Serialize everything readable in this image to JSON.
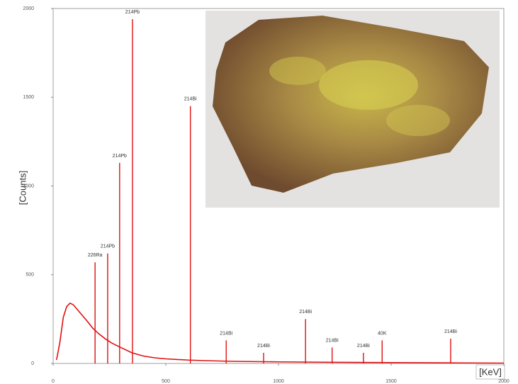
{
  "chart_data": {
    "type": "line",
    "color": "#e01010",
    "y_label": "[Counts]",
    "x_label": "[KeV]",
    "xlim": [
      0,
      2000
    ],
    "xticks": [
      0,
      500,
      1000,
      1500,
      2000
    ],
    "ylim": [
      0,
      2000
    ],
    "yticks": [
      0,
      500,
      1000,
      1500,
      2000
    ],
    "x": [
      15,
      30,
      45,
      60,
      75,
      90,
      110,
      130,
      150,
      175,
      200,
      230,
      260,
      300,
      350,
      400,
      450,
      500,
      600,
      700,
      800,
      1000,
      1200,
      1500,
      1800,
      2000
    ],
    "values": [
      20,
      120,
      260,
      320,
      340,
      330,
      300,
      270,
      240,
      200,
      170,
      140,
      115,
      90,
      60,
      42,
      32,
      26,
      19,
      15,
      12,
      9,
      7,
      5,
      3,
      2
    ],
    "peaks": [
      {
        "energy": 186,
        "counts": 570,
        "label": "226Ra"
      },
      {
        "energy": 242,
        "counts": 620,
        "label": "214Pb"
      },
      {
        "energy": 295,
        "counts": 1130,
        "label": "214Pb"
      },
      {
        "energy": 352,
        "counts": 1940,
        "label": "214Pb"
      },
      {
        "energy": 609,
        "counts": 1450,
        "label": "214Bi"
      },
      {
        "energy": 768,
        "counts": 130,
        "label": "214Bi"
      },
      {
        "energy": 934,
        "counts": 60,
        "label": "214Bi"
      },
      {
        "energy": 1120,
        "counts": 250,
        "label": "214Bi"
      },
      {
        "energy": 1238,
        "counts": 90,
        "label": "214Bi"
      },
      {
        "energy": 1377,
        "counts": 60,
        "label": "214Bi"
      },
      {
        "energy": 1460,
        "counts": 130,
        "label": "40K"
      },
      {
        "energy": 1764,
        "counts": 140,
        "label": "214Bi"
      }
    ]
  }
}
